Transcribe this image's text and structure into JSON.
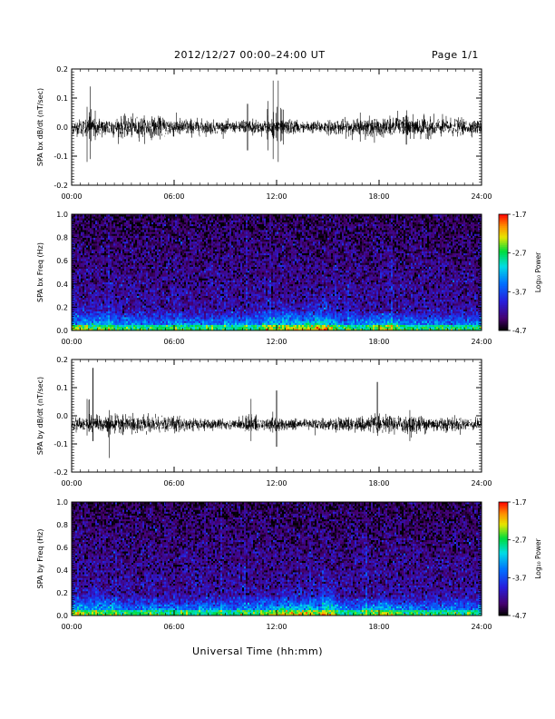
{
  "header": {
    "title": "2012/12/27   00:00–24:00 UT",
    "page": "Page 1/1"
  },
  "footer": {
    "xlabel": "Universal Time (hh:mm)"
  },
  "colors": {
    "trace": "#000000",
    "frame": "#000000"
  },
  "colorbar": {
    "ticks": [
      "-1.7",
      "-2.7",
      "-3.7",
      "-4.7"
    ],
    "label": "Log₁₀ Power",
    "range": [
      -4.7,
      -1.7
    ]
  },
  "chart_data": [
    {
      "type": "line",
      "ylabel": "SPA bx dB/dt (nT/sec)",
      "xticks": [
        "00:00",
        "06:00",
        "12:00",
        "18:00",
        "24:00"
      ],
      "xlim": [
        0,
        24
      ],
      "ylim": [
        -0.2,
        0.2
      ],
      "yticks": [
        "0.2",
        "0.1",
        "0.0",
        "-0.1",
        "-0.2"
      ],
      "ytick_values": [
        0.2,
        0.1,
        0.0,
        -0.1,
        -0.2
      ],
      "baseline": 0.0,
      "noise": 0.018,
      "features": [
        {
          "t": 1.1,
          "min": -0.11,
          "max": 0.14
        },
        {
          "t": 0.9,
          "min": -0.12,
          "max": 0.07
        },
        {
          "t": 10.3,
          "min": -0.08,
          "max": 0.08
        },
        {
          "t": 11.8,
          "min": -0.11,
          "max": 0.16
        },
        {
          "t": 12.1,
          "min": -0.12,
          "max": 0.16
        },
        {
          "t": 11.5,
          "min": -0.08,
          "max": 0.09
        },
        {
          "t": 12.4,
          "min": -0.06,
          "max": 0.06
        },
        {
          "t": 16.9,
          "min": -0.05,
          "max": 0.05
        },
        {
          "t": 19.6,
          "min": -0.06,
          "max": 0.04
        }
      ]
    },
    {
      "type": "heatmap",
      "ylabel": "SPA bx Freq (Hz)",
      "xticks": [
        "00:00",
        "06:00",
        "12:00",
        "18:00",
        "24:00"
      ],
      "xlim": [
        0,
        24
      ],
      "ylim": [
        0.0,
        1.0
      ],
      "yticks": [
        "1.0",
        "0.8",
        "0.6",
        "0.4",
        "0.2",
        "0.0"
      ],
      "ytick_values": [
        1.0,
        0.8,
        0.6,
        0.4,
        0.2,
        0.0
      ],
      "zrange": [
        -4.7,
        -1.7
      ],
      "bumps": [
        {
          "t0": 10.5,
          "t1": 15.5,
          "fmax": 0.3
        },
        {
          "t0": 14.0,
          "t1": 15.5,
          "fmax": 0.35
        },
        {
          "t0": 17.0,
          "t1": 19.5,
          "fmax": 0.18
        }
      ]
    },
    {
      "type": "line",
      "ylabel": "SPA by dB/dt (nT/sec)",
      "xticks": [
        "00:00",
        "06:00",
        "12:00",
        "18:00",
        "24:00"
      ],
      "xlim": [
        0,
        24
      ],
      "ylim": [
        -0.2,
        0.2
      ],
      "yticks": [
        "0.2",
        "0.1",
        "0.0",
        "-0.1",
        "-0.2"
      ],
      "ytick_values": [
        0.2,
        0.1,
        0.0,
        -0.1,
        -0.2
      ],
      "baseline": -0.03,
      "noise": 0.015,
      "features": [
        {
          "t": 1.25,
          "min": -0.09,
          "max": 0.17
        },
        {
          "t": 0.9,
          "min": -0.07,
          "max": 0.06
        },
        {
          "t": 2.2,
          "min": -0.15,
          "max": 0.02
        },
        {
          "t": 10.5,
          "min": -0.09,
          "max": 0.06
        },
        {
          "t": 12.0,
          "min": -0.11,
          "max": 0.09
        },
        {
          "t": 17.9,
          "min": -0.06,
          "max": 0.12
        },
        {
          "t": 19.8,
          "min": -0.09,
          "max": 0.02
        }
      ]
    },
    {
      "type": "heatmap",
      "ylabel": "SPA by Freq (Hz)",
      "xticks": [
        "00:00",
        "06:00",
        "12:00",
        "18:00",
        "24:00"
      ],
      "xlim": [
        0,
        24
      ],
      "ylim": [
        0.0,
        1.0
      ],
      "yticks": [
        "1.0",
        "0.8",
        "0.6",
        "0.4",
        "0.2",
        "0.0"
      ],
      "ytick_values": [
        1.0,
        0.8,
        0.6,
        0.4,
        0.2,
        0.0
      ],
      "zrange": [
        -4.7,
        -1.7
      ],
      "bumps": [
        {
          "t0": 10.5,
          "t1": 15.5,
          "fmax": 0.28
        },
        {
          "t0": 14.5,
          "t1": 15.8,
          "fmax": 0.38
        },
        {
          "t0": 17.0,
          "t1": 19.5,
          "fmax": 0.18
        }
      ]
    }
  ]
}
